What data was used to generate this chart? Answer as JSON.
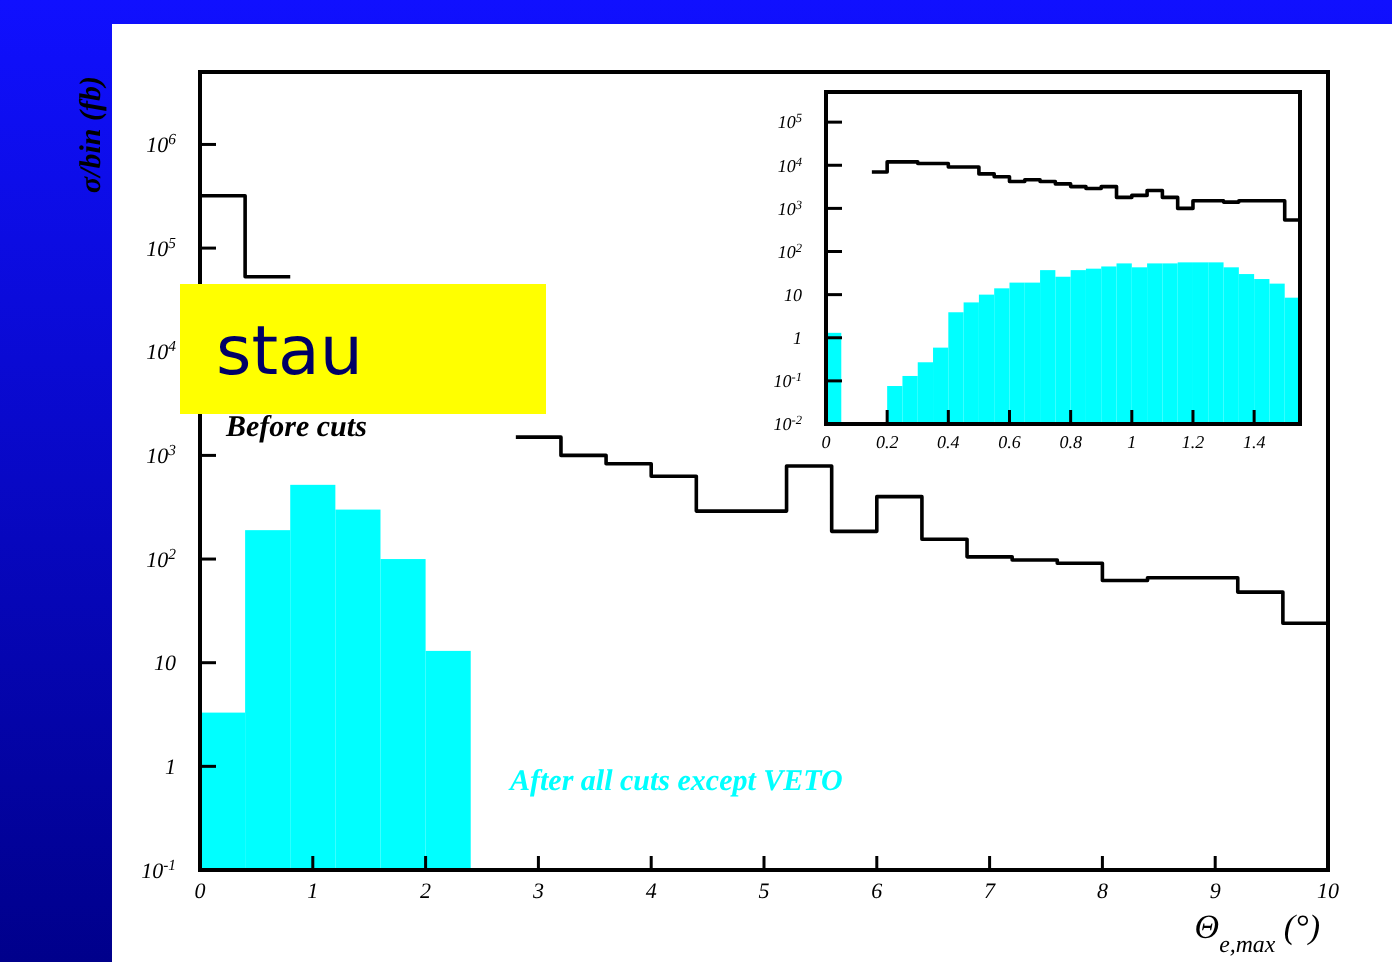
{
  "chart_data": [
    {
      "type": "histogram",
      "xlabel": "Θ$_{e,max}$ (°)",
      "ylabel": "σ/bin (fb)",
      "log": "y",
      "xlim": [
        0,
        10
      ],
      "xticks": [
        0,
        1,
        2,
        3,
        4,
        5,
        6,
        7,
        8,
        9,
        10
      ],
      "ylim": [
        0.1,
        5000000
      ],
      "yticks": [
        {
          "value": 0.1,
          "label": "10$^{-1}$"
        },
        {
          "value": 1,
          "label": "1"
        },
        {
          "value": 10,
          "label": "10"
        },
        {
          "value": 100,
          "label": "10$^{2}$"
        },
        {
          "value": 1000,
          "label": "10$^{3}$"
        },
        {
          "value": 10000,
          "label": "10$^{4}$"
        },
        {
          "value": 100000,
          "label": "10$^{5}$"
        },
        {
          "value": 1000000,
          "label": "10$^{6}$"
        }
      ],
      "legend": false,
      "grid": false,
      "annotations": [
        "stau"
      ],
      "bins": [
        0,
        0.4,
        0.8,
        1.2,
        1.6,
        2,
        2.4,
        2.8,
        3.2,
        3.6,
        4,
        4.4,
        4.8,
        5.2,
        5.6,
        6,
        6.4,
        6.8,
        7.2,
        7.6,
        8,
        8.4,
        8.8,
        9.2,
        9.6,
        10
      ],
      "series": [
        {
          "name": "Before cuts",
          "type": "step",
          "color": "#000000",
          "x": [
            0,
            0.4,
            0.8,
            1.2,
            1.6,
            2,
            2.4,
            2.8,
            3.2,
            3.6,
            4,
            4.4,
            4.8,
            5.2,
            5.6,
            6,
            6.4,
            6.8,
            7.2,
            7.6,
            8,
            8.4,
            8.8,
            9.2,
            9.6,
            10
          ],
          "values": [
            320000,
            53000,
            null,
            null,
            null,
            null,
            null,
            1500,
            1000,
            830,
            630,
            290,
            290,
            790,
            185,
            400,
            155,
            105,
            98,
            91,
            62,
            66,
            66,
            48,
            24,
            24
          ]
        },
        {
          "name": "After all cuts except VETO",
          "type": "histogram",
          "color": "#00ffff",
          "values": [
            3.3,
            190,
            520,
            300,
            100,
            13,
            null,
            null,
            null,
            null,
            null,
            null,
            null,
            null,
            null,
            null,
            null,
            null,
            null,
            null,
            null,
            null,
            null,
            null,
            null
          ]
        }
      ]
    },
    {
      "type": "histogram",
      "log": "y",
      "xlim": [
        0,
        1.55
      ],
      "xticks": [
        0,
        0.2,
        0.4,
        0.6,
        0.8,
        1,
        1.2,
        1.4
      ],
      "ylim": [
        0.01,
        500000
      ],
      "yticks": [
        {
          "value": 0.01,
          "label": "10$^{-2}$"
        },
        {
          "value": 0.1,
          "label": "10$^{-1}$"
        },
        {
          "value": 1,
          "label": "1"
        },
        {
          "value": 10,
          "label": "10"
        },
        {
          "value": 100,
          "label": "10$^{2}$"
        },
        {
          "value": 1000,
          "label": "10$^{3}$"
        },
        {
          "value": 10000,
          "label": "10$^{4}$"
        },
        {
          "value": 100000,
          "label": "10$^{5}$"
        }
      ],
      "legend": false,
      "grid": false,
      "bins": [
        0,
        0.05,
        0.1,
        0.15,
        0.2,
        0.25,
        0.3,
        0.35,
        0.4,
        0.45,
        0.5,
        0.55,
        0.6,
        0.65,
        0.7,
        0.75,
        0.8,
        0.85,
        0.9,
        0.95,
        1,
        1.05,
        1.1,
        1.15,
        1.2,
        1.25,
        1.3,
        1.35,
        1.4,
        1.45,
        1.5,
        1.55
      ],
      "series": [
        {
          "type": "histogram",
          "color": "#00ffff",
          "values": [
            1.3,
            null,
            null,
            null,
            0.076,
            0.13,
            0.27,
            0.59,
            3.9,
            6.6,
            10,
            14,
            19,
            19,
            37,
            26,
            37,
            40,
            45,
            53,
            43,
            53,
            53,
            56,
            56,
            56,
            43,
            30,
            23,
            18,
            8.5
          ]
        },
        {
          "type": "step",
          "color": "#000000",
          "x": [
            0.15,
            0.2,
            0.25,
            0.3,
            0.35,
            0.4,
            0.45,
            0.5,
            0.55,
            0.6,
            0.65,
            0.7,
            0.75,
            0.8,
            0.85,
            0.9,
            0.95,
            1,
            1.05,
            1.1,
            1.15,
            1.2,
            1.25,
            1.3,
            1.35,
            1.4,
            1.45,
            1.5,
            1.55
          ],
          "values": [
            7000,
            12000,
            12000,
            11000,
            11000,
            9100,
            9100,
            6300,
            5400,
            4200,
            4600,
            4200,
            3700,
            3200,
            2900,
            3200,
            1800,
            2000,
            2600,
            1800,
            1000,
            1500,
            1500,
            1400,
            1500,
            1500,
            1500,
            540,
            540
          ]
        }
      ]
    }
  ]
}
